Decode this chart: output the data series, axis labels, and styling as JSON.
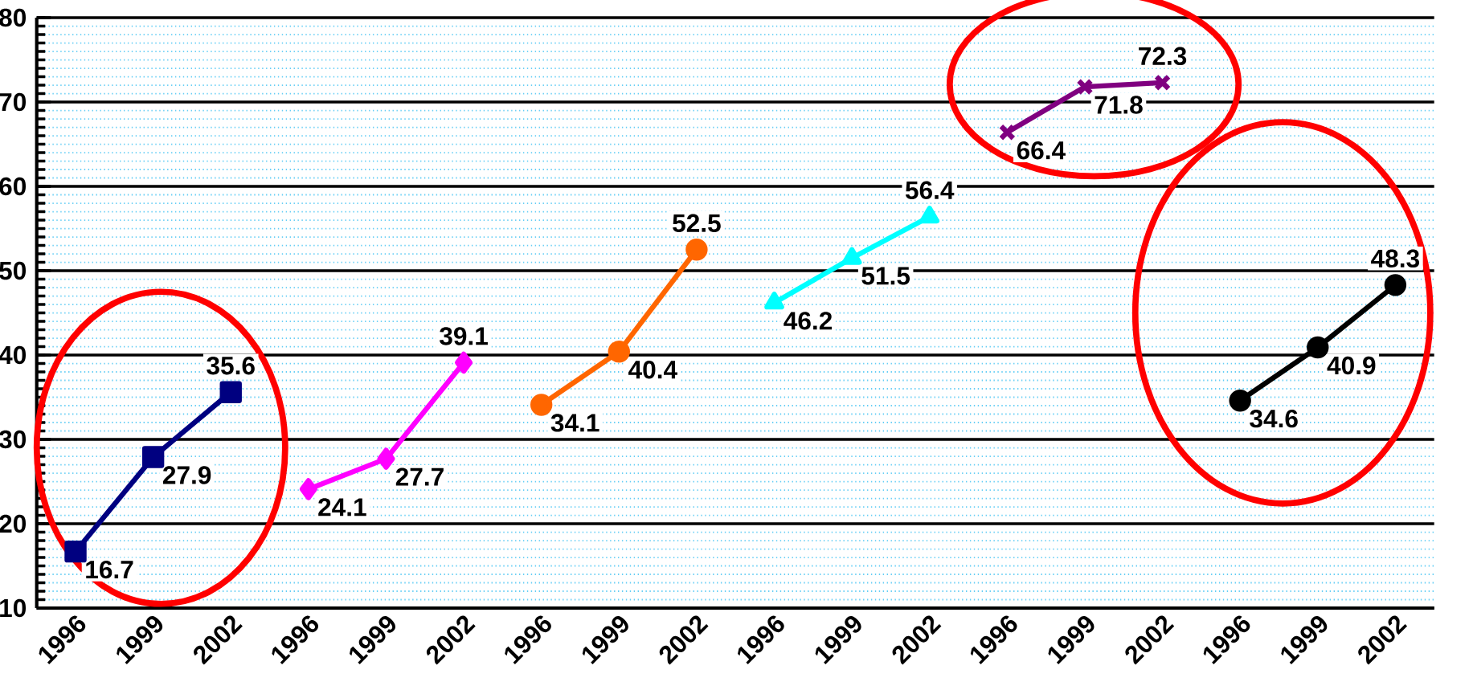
{
  "chart_data": {
    "type": "line",
    "categories": [
      "1996",
      "1999",
      "2002",
      "1996",
      "1999",
      "2002",
      "1996",
      "1999",
      "2002",
      "1996",
      "1999",
      "2002",
      "1996",
      "1999",
      "2002",
      "1996",
      "1999",
      "2002"
    ],
    "series": [
      {
        "color": "#000080",
        "marker": "square",
        "values": [
          16.7,
          27.9,
          35.6,
          null,
          null,
          null,
          null,
          null,
          null,
          null,
          null,
          null,
          null,
          null,
          null,
          null,
          null,
          null
        ]
      },
      {
        "color": "#ff00ff",
        "marker": "diamond",
        "values": [
          null,
          null,
          null,
          24.1,
          27.7,
          39.1,
          null,
          null,
          null,
          null,
          null,
          null,
          null,
          null,
          null,
          null,
          null,
          null
        ]
      },
      {
        "color": "#ff6600",
        "marker": "circle",
        "values": [
          null,
          null,
          null,
          null,
          null,
          null,
          34.1,
          40.4,
          52.5,
          null,
          null,
          null,
          null,
          null,
          null,
          null,
          null,
          null
        ]
      },
      {
        "color": "#00ffff",
        "marker": "triangle",
        "values": [
          null,
          null,
          null,
          null,
          null,
          null,
          null,
          null,
          null,
          46.2,
          51.5,
          56.4,
          null,
          null,
          null,
          null,
          null,
          null
        ]
      },
      {
        "color": "#800080",
        "marker": "cross",
        "values": [
          null,
          null,
          null,
          null,
          null,
          null,
          null,
          null,
          null,
          null,
          null,
          null,
          66.4,
          71.8,
          72.3,
          null,
          null,
          null
        ]
      },
      {
        "color": "#000000",
        "marker": "circle",
        "values": [
          null,
          null,
          null,
          null,
          null,
          null,
          null,
          null,
          null,
          null,
          null,
          null,
          null,
          null,
          null,
          34.6,
          40.9,
          48.3
        ]
      }
    ],
    "ylim": [
      10,
      80
    ],
    "yticks": [
      10,
      20,
      30,
      40,
      50,
      60,
      70,
      80
    ],
    "grid": "y",
    "data_labels": true
  }
}
